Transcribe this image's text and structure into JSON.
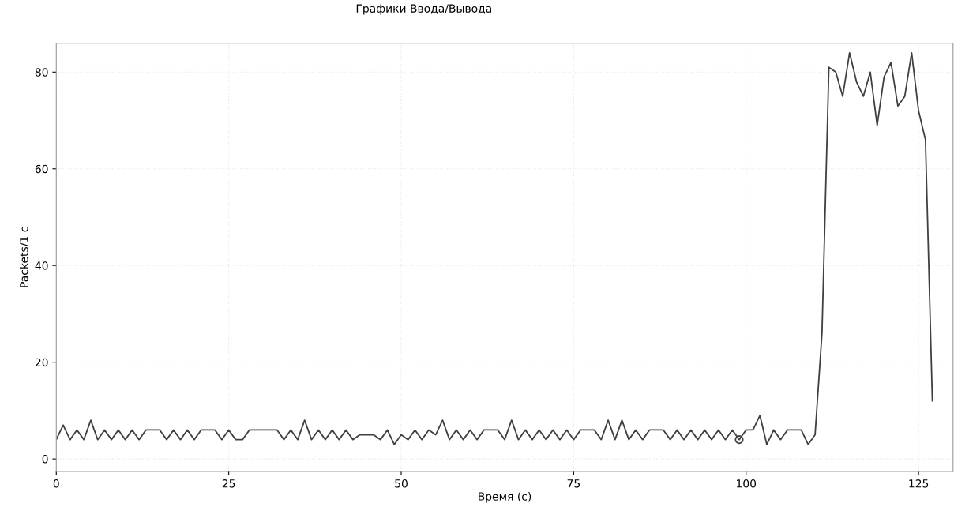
{
  "chart_data": {
    "type": "line",
    "title": "Графики Ввода/Вывода",
    "xlabel": "Время (с)",
    "ylabel": "Packets/1 с",
    "x": [
      0,
      1,
      2,
      3,
      4,
      5,
      6,
      7,
      8,
      9,
      10,
      11,
      12,
      13,
      14,
      15,
      16,
      17,
      18,
      19,
      20,
      21,
      22,
      23,
      24,
      25,
      26,
      27,
      28,
      29,
      30,
      31,
      32,
      33,
      34,
      35,
      36,
      37,
      38,
      39,
      40,
      41,
      42,
      43,
      44,
      45,
      46,
      47,
      48,
      49,
      50,
      51,
      52,
      53,
      54,
      55,
      56,
      57,
      58,
      59,
      60,
      61,
      62,
      63,
      64,
      65,
      66,
      67,
      68,
      69,
      70,
      71,
      72,
      73,
      74,
      75,
      76,
      77,
      78,
      79,
      80,
      81,
      82,
      83,
      84,
      85,
      86,
      87,
      88,
      89,
      90,
      91,
      92,
      93,
      94,
      95,
      96,
      97,
      98,
      99,
      100,
      101,
      102,
      103,
      104,
      105,
      106,
      107,
      108,
      109,
      110,
      111,
      112,
      113,
      114,
      115,
      116,
      117,
      118,
      119,
      120,
      121,
      122,
      123,
      124,
      125,
      126,
      127
    ],
    "series": [
      {
        "color": "#404040",
        "values": [
          4,
          7,
          4,
          6,
          4,
          8,
          4,
          6,
          4,
          6,
          4,
          6,
          4,
          6,
          6,
          6,
          4,
          6,
          4,
          6,
          4,
          6,
          6,
          6,
          4,
          6,
          4,
          4,
          6,
          6,
          6,
          6,
          6,
          4,
          6,
          4,
          8,
          4,
          6,
          4,
          6,
          4,
          6,
          4,
          5,
          5,
          5,
          4,
          6,
          3,
          5,
          4,
          6,
          4,
          6,
          5,
          8,
          4,
          6,
          4,
          6,
          4,
          6,
          6,
          6,
          4,
          8,
          4,
          6,
          4,
          6,
          4,
          6,
          4,
          6,
          4,
          6,
          6,
          6,
          4,
          8,
          4,
          8,
          4,
          6,
          4,
          6,
          6,
          6,
          4,
          6,
          4,
          6,
          4,
          6,
          4,
          6,
          4,
          6,
          4,
          6,
          6,
          9,
          3,
          6,
          4,
          6,
          6,
          6,
          3,
          5,
          26,
          81,
          80,
          75,
          84,
          78,
          75,
          80,
          69,
          79,
          82,
          73,
          75,
          84,
          72,
          66,
          12
        ]
      },
      {
        "type": "scatter",
        "marker": "circle",
        "color": "#404040",
        "x": [
          99
        ],
        "values": [
          4
        ]
      }
    ],
    "xlim": [
      0,
      130
    ],
    "ylim": [
      -2.6,
      86
    ],
    "xticks": [
      0,
      25,
      50,
      75,
      100,
      125
    ],
    "yticks": [
      0,
      20,
      40,
      60,
      80
    ],
    "grid": true
  }
}
